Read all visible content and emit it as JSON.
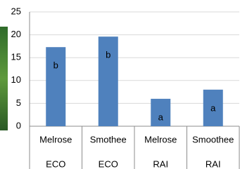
{
  "chart_data": {
    "type": "bar",
    "categories": [
      [
        "Melrose",
        "ECO"
      ],
      [
        "Smothee",
        "ECO"
      ],
      [
        "Melrose",
        "RAI"
      ],
      [
        "Smoothee",
        "RAI"
      ]
    ],
    "values": [
      17.3,
      19.6,
      6,
      8
    ],
    "annotations": [
      "b",
      "b",
      "a",
      "a"
    ],
    "color": "#4f81bd",
    "ylim": [
      0,
      25
    ],
    "yticks": [
      0,
      5,
      10,
      15,
      20,
      25
    ],
    "grid": true
  }
}
